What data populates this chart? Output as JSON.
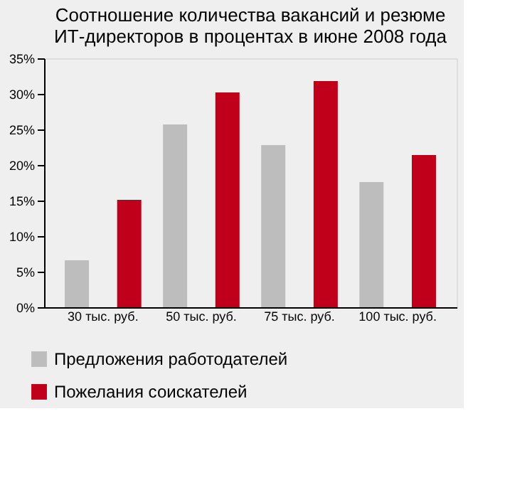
{
  "chart_data": {
    "type": "bar",
    "title": [
      "Соотношение количества вакансий и резюме",
      "ИТ-директоров в процентах в июне 2008 года"
    ],
    "categories": [
      "30 тыс. руб.",
      "50 тыс. руб.",
      "75 тыс. руб.",
      "100 тыс. руб."
    ],
    "series": [
      {
        "name": "Предложения работодателей",
        "color": "#bdbdbd",
        "values": [
          6.6,
          25.7,
          22.8,
          17.6
        ]
      },
      {
        "name": "Пожелания соискателей",
        "color": "#c0001a",
        "values": [
          15.1,
          30.2,
          31.8,
          21.4
        ]
      }
    ],
    "ylim": [
      0,
      35
    ],
    "yticks": [
      {
        "value": 0,
        "label": "0%"
      },
      {
        "value": 5,
        "label": "5%"
      },
      {
        "value": 10,
        "label": "10%"
      },
      {
        "value": 15,
        "label": "15%"
      },
      {
        "value": 20,
        "label": "20%"
      },
      {
        "value": 25,
        "label": "25%"
      },
      {
        "value": 30,
        "label": "30%"
      },
      {
        "value": 35,
        "label": "35%"
      }
    ],
    "grid": false,
    "legend": "bottom left"
  }
}
